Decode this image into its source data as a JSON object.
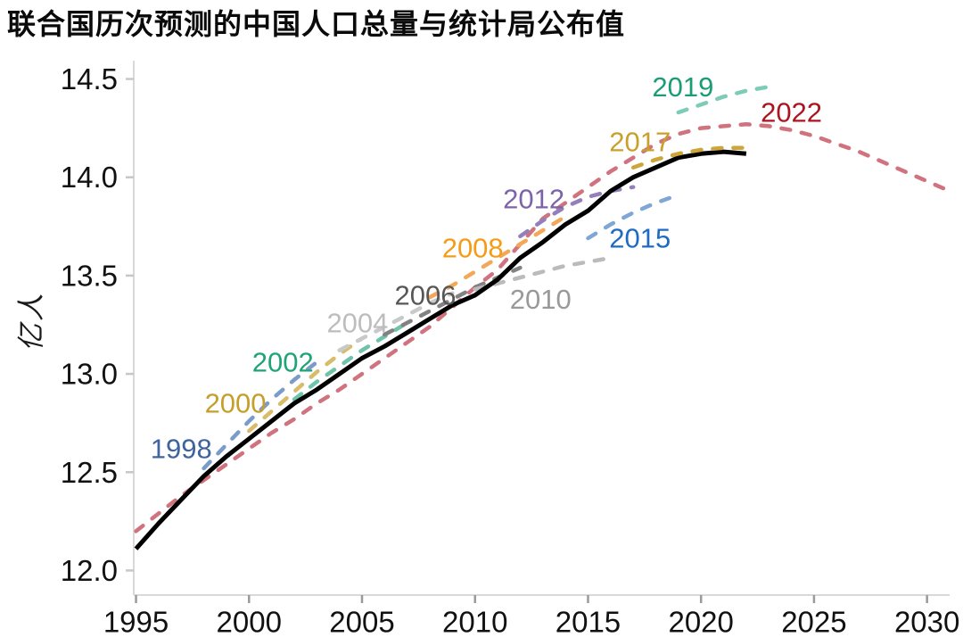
{
  "title": "联合国历次预测的中国人口总量与统计局公布值",
  "chart_data": {
    "type": "line",
    "title": "联合国历次预测的中国人口总量与统计局公布值",
    "ylabel": "亿人",
    "xlim": [
      1994.9,
      2031.0
    ],
    "ylim": [
      11.875,
      14.575
    ],
    "x_ticks": [
      1995,
      2000,
      2005,
      2010,
      2015,
      2020,
      2025,
      2030
    ],
    "y_ticks": [
      12.0,
      12.5,
      13.0,
      13.5,
      14.0,
      14.5
    ],
    "grid": false,
    "legend_position": "inline-labels-on-lines",
    "axis_color": "#d9d9d9",
    "x_tick_color": "#9a9a9a",
    "y_tick_color": "#c7c7c7",
    "tick_label_color": "#111111",
    "series": [
      {
        "id": "forecast-2022",
        "name": "联合国2022年预测",
        "dashed": true,
        "color": "#d0737f",
        "label_color": "#ac1420",
        "start_year": 1995,
        "values": [
          12.2,
          12.29,
          12.38,
          12.46,
          12.54,
          12.62,
          12.7,
          12.77,
          12.85,
          12.92,
          13.0,
          13.08,
          13.16,
          13.24,
          13.34,
          13.44,
          13.53,
          13.66,
          13.79,
          13.87,
          13.95,
          14.03,
          14.1,
          14.17,
          14.22,
          14.25,
          14.26,
          14.27,
          14.26,
          14.24,
          14.21,
          14.17,
          14.13,
          14.08,
          14.03,
          13.98,
          13.93
        ],
        "label": {
          "text": "2022",
          "x": 2024.0,
          "y": 14.33
        }
      },
      {
        "id": "forecast-1998",
        "name": "联合国1998年预测",
        "dashed": true,
        "color": "#7b9cc9",
        "label_color": "#3e639e",
        "start_year": 1998,
        "values": [
          12.52,
          12.64,
          12.76,
          12.87,
          12.97,
          13.06
        ],
        "label": {
          "text": "1998",
          "x": 1997.0,
          "y": 12.62
        }
      },
      {
        "id": "forecast-2000",
        "name": "联合国2000年预测",
        "dashed": true,
        "color": "#d9bc6a",
        "label_color": "#c49f2b",
        "start_year": 2000,
        "values": [
          12.71,
          12.81,
          12.91,
          13.01,
          13.1,
          13.18
        ],
        "label": {
          "text": "2000",
          "x": 1999.4,
          "y": 12.85
        }
      },
      {
        "id": "forecast-2002",
        "name": "联合国2002年预测",
        "dashed": true,
        "color": "#6ec3ab",
        "label_color": "#21a378",
        "start_year": 2002,
        "values": [
          12.87,
          12.96,
          13.04,
          13.12,
          13.19,
          13.26
        ],
        "label": {
          "text": "2002",
          "x": 2001.5,
          "y": 13.06
        }
      },
      {
        "id": "forecast-2004",
        "name": "联合国2004年预测",
        "dashed": true,
        "color": "#c9c9c9",
        "label_color": "#bdbdbd",
        "start_year": 2004,
        "values": [
          13.12,
          13.18,
          13.24,
          13.3,
          13.36,
          13.41
        ],
        "label": {
          "text": "2004",
          "x": 2004.8,
          "y": 13.26
        }
      },
      {
        "id": "forecast-2006",
        "name": "联合国2006年预测",
        "dashed": true,
        "color": "#828282",
        "label_color": "#575757",
        "start_year": 2006,
        "values": [
          13.2,
          13.26,
          13.32,
          13.38,
          13.44,
          13.49,
          13.54
        ],
        "label": {
          "text": "2006",
          "x": 2007.8,
          "y": 13.4
        }
      },
      {
        "id": "forecast-2008",
        "name": "联合国2008年预测",
        "dashed": true,
        "color": "#f3a758",
        "label_color": "#f59c16",
        "start_year": 2008,
        "values": [
          13.39,
          13.45,
          13.52,
          13.59,
          13.66,
          13.73,
          13.8
        ],
        "label": {
          "text": "2008",
          "x": 2009.9,
          "y": 13.64
        }
      },
      {
        "id": "forecast-2010",
        "name": "联合国2010年预测",
        "dashed": true,
        "color": "#bbbbbb",
        "label_color": "#999999",
        "start_year": 2010,
        "values": [
          13.43,
          13.46,
          13.49,
          13.52,
          13.55,
          13.57,
          13.59
        ],
        "label": {
          "text": "2010",
          "x": 2012.9,
          "y": 13.38
        }
      },
      {
        "id": "forecast-2012",
        "name": "联合国2012年预测",
        "dashed": true,
        "color": "#937fba",
        "label_color": "#7d63a9",
        "start_year": 2012,
        "values": [
          13.7,
          13.78,
          13.85,
          13.9,
          13.93,
          13.95
        ],
        "label": {
          "text": "2012",
          "x": 2012.6,
          "y": 13.89
        }
      },
      {
        "id": "forecast-2015",
        "name": "联合国2015年预测",
        "dashed": true,
        "color": "#7fa7d6",
        "label_color": "#1e6bc4",
        "start_year": 2015,
        "values": [
          13.69,
          13.76,
          13.82,
          13.87,
          13.91
        ],
        "label": {
          "text": "2015",
          "x": 2017.3,
          "y": 13.69
        }
      },
      {
        "id": "official",
        "name": "统计局公布值",
        "dashed": false,
        "color": "#000000",
        "width": 5,
        "start_year": 1995,
        "values": [
          12.11,
          12.24,
          12.36,
          12.48,
          12.58,
          12.67,
          12.76,
          12.85,
          12.92,
          13.0,
          13.08,
          13.14,
          13.21,
          13.28,
          13.35,
          13.4,
          13.48,
          13.59,
          13.67,
          13.76,
          13.83,
          13.93,
          14.0,
          14.05,
          14.1,
          14.12,
          14.13,
          14.12
        ]
      },
      {
        "id": "forecast-2017",
        "name": "联合国2017年预测",
        "dashed": true,
        "color": "#cda63b",
        "label_color": "#c9a02c",
        "start_year": 2017,
        "values": [
          14.05,
          14.09,
          14.12,
          14.14,
          14.15,
          14.15
        ],
        "label": {
          "text": "2017",
          "x": 2017.3,
          "y": 14.18
        }
      },
      {
        "id": "forecast-2019",
        "name": "联合国2019年预测",
        "dashed": true,
        "color": "#7eccb8",
        "label_color": "#1a9d74",
        "start_year": 2019,
        "values": [
          14.33,
          14.37,
          14.41,
          14.44,
          14.46
        ],
        "label": {
          "text": "2019",
          "x": 2019.2,
          "y": 14.46
        }
      }
    ]
  }
}
